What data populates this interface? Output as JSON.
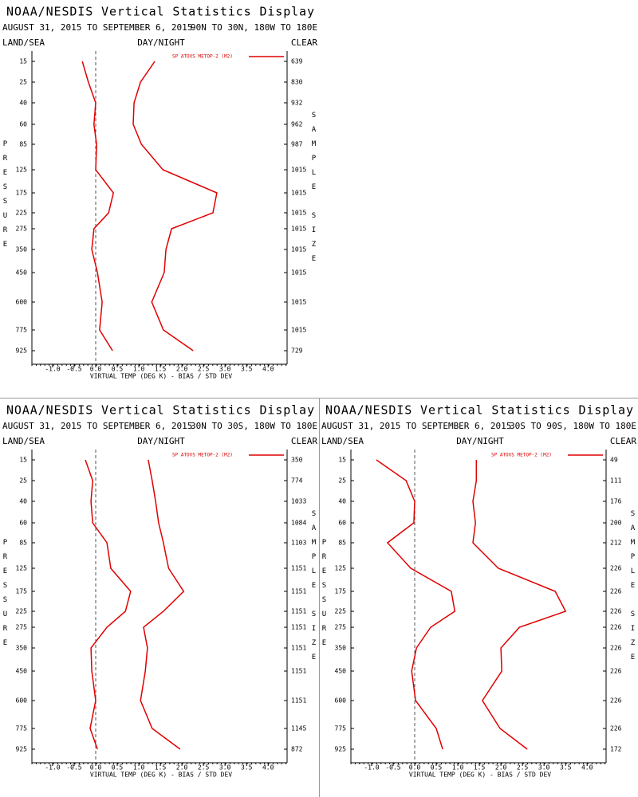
{
  "chart_data": [
    {
      "type": "line",
      "title": "NOAA/NESDIS Vertical Statistics Display",
      "subtitle": "AUGUST 31, 2015 TO SEPTEMBER 6, 2015",
      "region": "90N TO 30N, 180W TO 180E",
      "left_label": "LAND/SEA",
      "center_label": "DAY/NIGHT",
      "right_label": "CLEAR",
      "y_label": "PRESSURE",
      "y2_label": "SAMPLE SIZE",
      "x_label": "VIRTUAL TEMP (DEG K) - BIAS / STD DEV",
      "categories": [
        15,
        25,
        40,
        60,
        85,
        125,
        175,
        225,
        275,
        350,
        450,
        600,
        775,
        925
      ],
      "sample_size": [
        639,
        830,
        932,
        962,
        987,
        1015,
        1015,
        1015,
        1015,
        1015,
        1015,
        1015,
        1015,
        729
      ],
      "series": [
        {
          "name": "SP ATOVS METOP-2 (M2)",
          "color": "#e00000",
          "values": [
            -0.31,
            -0.17,
            0.0,
            -0.04,
            0.02,
            0.0,
            0.41,
            0.3,
            -0.04,
            -0.09,
            0.04,
            0.15,
            0.09,
            0.39
          ]
        },
        {
          "color": "#e00000",
          "values": [
            1.37,
            1.04,
            0.89,
            0.87,
            1.06,
            1.56,
            2.81,
            2.72,
            1.76,
            1.63,
            1.59,
            1.3,
            1.57,
            2.26
          ]
        }
      ],
      "xlim": [
        -1.48,
        4.44
      ],
      "xticks": [
        {
          "value": -1,
          "label": "-1.0"
        },
        -0.5,
        {
          "value": 0,
          "label": "0.0"
        },
        0.5,
        {
          "value": 1,
          "label": "1.0"
        },
        1.5,
        {
          "value": 2,
          "label": "2.0"
        },
        2.5,
        {
          "value": 3,
          "label": "3.0"
        },
        3.5,
        {
          "value": 4,
          "label": "4.0"
        }
      ]
    },
    {
      "type": "line",
      "title": "NOAA/NESDIS Vertical Statistics Display",
      "subtitle": "AUGUST 31, 2015 TO SEPTEMBER 6, 2015",
      "region": "30N TO 30S, 180W TO 180E",
      "left_label": "LAND/SEA",
      "center_label": "DAY/NIGHT",
      "right_label": "CLEAR",
      "y_label": "PRESSURE",
      "y2_label": "SAMPLE SIZE",
      "x_label": "VIRTUAL TEMP (DEG K) - BIAS / STD DEV",
      "categories": [
        15,
        25,
        40,
        60,
        85,
        125,
        175,
        225,
        275,
        350,
        450,
        600,
        775,
        925
      ],
      "sample_size": [
        350,
        774,
        1033,
        1084,
        1103,
        1151,
        1151,
        1151,
        1151,
        1151,
        1151,
        1151,
        1145,
        872
      ],
      "series": [
        {
          "name": "SP ATOVS METOP-2 (M2)",
          "color": "#e00000",
          "values": [
            -0.24,
            -0.07,
            -0.11,
            -0.07,
            0.26,
            0.35,
            0.81,
            0.69,
            0.26,
            -0.11,
            -0.09,
            0.0,
            -0.13,
            0.04
          ]
        },
        {
          "color": "#e00000",
          "values": [
            1.22,
            1.31,
            1.39,
            1.46,
            1.57,
            1.69,
            2.04,
            1.57,
            1.11,
            1.2,
            1.15,
            1.04,
            1.31,
            1.96
          ]
        }
      ],
      "xlim": [
        -1.48,
        4.44
      ],
      "xticks": [
        {
          "value": -1,
          "label": "-1.0"
        },
        -0.5,
        {
          "value": 0,
          "label": "0.0"
        },
        0.5,
        {
          "value": 1,
          "label": "1.0"
        },
        1.5,
        {
          "value": 2,
          "label": "2.0"
        },
        2.5,
        {
          "value": 3,
          "label": "3.0"
        },
        3.5,
        {
          "value": 4,
          "label": "4.0"
        }
      ]
    },
    {
      "type": "line",
      "title": "NOAA/NESDIS Vertical Statistics Display",
      "subtitle": "AUGUST 31, 2015 TO SEPTEMBER 6, 2015",
      "region": "30S TO 90S, 180W TO 180E",
      "left_label": "LAND/SEA",
      "center_label": "DAY/NIGHT",
      "right_label": "CLEAR",
      "y_label": "PRESSURE",
      "y2_label": "SAMPLE SIZE",
      "x_label": "VIRTUAL TEMP (DEG K) - BIAS / STD DEV",
      "categories": [
        15,
        25,
        40,
        60,
        85,
        125,
        175,
        225,
        275,
        350,
        450,
        600,
        775,
        925
      ],
      "sample_size": [
        49,
        111,
        176,
        200,
        212,
        226,
        226,
        226,
        226,
        226,
        226,
        226,
        226,
        172
      ],
      "series": [
        {
          "name": "SP ATOVS METOP-2 (M2)",
          "color": "#e00000",
          "values": [
            -0.89,
            -0.2,
            0.0,
            -0.02,
            -0.63,
            -0.09,
            0.85,
            0.93,
            0.37,
            0.04,
            -0.07,
            0.02,
            0.5,
            0.65
          ]
        },
        {
          "color": "#e00000",
          "values": [
            1.43,
            1.43,
            1.35,
            1.41,
            1.35,
            1.94,
            3.26,
            3.5,
            2.43,
            2.0,
            2.02,
            1.57,
            1.98,
            2.61
          ]
        }
      ],
      "xlim": [
        -1.48,
        4.44
      ],
      "xticks": [
        {
          "value": -1,
          "label": "-1.0"
        },
        -0.5,
        {
          "value": 0,
          "label": "0.0"
        },
        0.5,
        {
          "value": 1,
          "label": "1.0"
        },
        1.5,
        {
          "value": 2,
          "label": "2.0"
        },
        2.5,
        {
          "value": 3,
          "label": "3.0"
        },
        3.5,
        {
          "value": 4,
          "label": "4.0"
        }
      ]
    }
  ]
}
